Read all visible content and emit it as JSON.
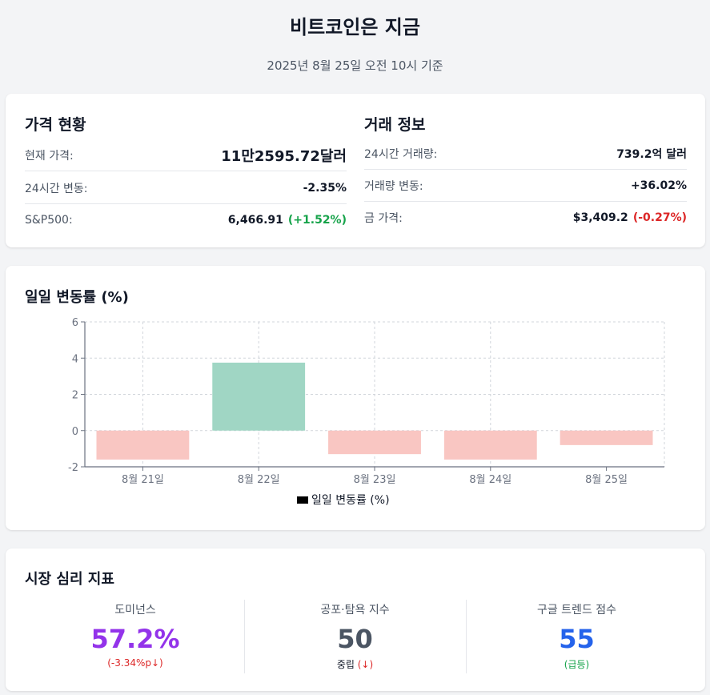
{
  "header": {
    "title": "비트코인은 지금",
    "subtitle": "2025년 8월 25일 오전 10시 기준"
  },
  "price_status": {
    "title": "가격 현황",
    "rows": [
      {
        "label": "현재 가격:",
        "value": "11만2595.72달러"
      },
      {
        "label": "24시간 변동:",
        "value": "-2.35%"
      },
      {
        "label": "S&P500:",
        "value": "6,466.91",
        "change": "(+1.52%)"
      }
    ]
  },
  "trade_info": {
    "title": "거래 정보",
    "rows": [
      {
        "label": "24시간 거래량:",
        "value": "739.2억 달러"
      },
      {
        "label": "거래량 변동:",
        "value": "+36.02%"
      },
      {
        "label": "금 가격:",
        "value": "$3,409.2",
        "change": "(-0.27%)"
      }
    ]
  },
  "chart_section": {
    "title": "일일 변동률 (%)"
  },
  "chart_data": {
    "type": "bar",
    "categories": [
      "8월 21일",
      "8월 22일",
      "8월 23일",
      "8월 24일",
      "8월 25일"
    ],
    "series": [
      {
        "name": "일일 변동률 (%)",
        "values": [
          -1.6,
          3.75,
          -1.3,
          -1.6,
          -0.8
        ]
      }
    ],
    "ylim": [
      -2,
      6
    ],
    "yticks": [
      -2,
      0,
      2,
      4,
      6
    ],
    "grid": true,
    "legend": "bottom",
    "colors": {
      "positive": "#a0d6c4",
      "negative": "#f9c6c2",
      "legend_swatch": "#000000"
    }
  },
  "sentiment": {
    "title": "시장 심리 지표",
    "items": [
      {
        "label": "도미넌스",
        "value": "57.2%",
        "note": "(-3.34%p↓)"
      },
      {
        "label": "공포·탐욕 지수",
        "value": "50",
        "note_main": "중립",
        "note_sub": "(↓)"
      },
      {
        "label": "구글 트렌드 점수",
        "value": "55",
        "note": "(급등)"
      }
    ]
  }
}
